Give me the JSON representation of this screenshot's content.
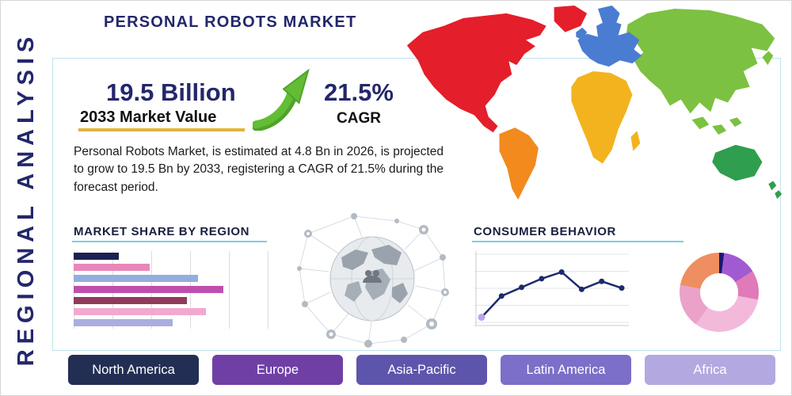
{
  "page": {
    "title": "PERSONAL ROBOTS MARKET",
    "side_label": "REGIONAL ANALYSIS"
  },
  "stats": {
    "market_value": "19.5 Billion",
    "market_value_label": "2033 Market Value",
    "cagr_value": "21.5%",
    "cagr_label": "CAGR",
    "description": "Personal Robots Market, is estimated at 4.8 Bn in 2026, is projected to grow to 19.5 Bn by 2033, registering a CAGR of 21.5% during the forecast period."
  },
  "sections": {
    "market_share_title": "MARKET SHARE BY REGION",
    "consumer_behavior_title": "CONSUMER BEHAVIOR"
  },
  "regions": [
    {
      "label": "North America",
      "color": "#232e54"
    },
    {
      "label": "Europe",
      "color": "#6f3fa6"
    },
    {
      "label": "Asia-Pacific",
      "color": "#5d55ab"
    },
    {
      "label": "Latin America",
      "color": "#7b6fc9"
    },
    {
      "label": "Africa",
      "color": "#b3a8e0"
    }
  ],
  "colors": {
    "accent_navy": "#23276b",
    "underline_teal": "#79cfe3",
    "gold_underline": "#e2b33c",
    "arrow_green": "#62bd34"
  },
  "map_colors": {
    "north_america": "#e41e2b",
    "greenland": "#e41e2b",
    "south_america": "#f28a1e",
    "europe": "#4a7cd2",
    "africa": "#f2b31e",
    "asia": "#7cc141",
    "australia": "#2f9e4e"
  },
  "chart_data": [
    {
      "type": "bar",
      "title": "MARKET SHARE BY REGION",
      "orientation": "horizontal",
      "values": [
        23,
        39,
        64,
        77,
        58,
        68,
        51
      ],
      "colors": [
        "#1b2153",
        "#e887b9",
        "#93aede",
        "#bf4fae",
        "#903a5c",
        "#f2a9d0",
        "#a9aede"
      ],
      "xlim": [
        0,
        100
      ],
      "grid": true,
      "axis_labels_visible": false
    },
    {
      "type": "line",
      "title": "CONSUMER BEHAVIOR",
      "x": [
        1,
        2,
        3,
        4,
        5,
        6,
        7,
        8
      ],
      "values": [
        10,
        42,
        55,
        68,
        78,
        52,
        64,
        54
      ],
      "ylim": [
        0,
        100
      ],
      "color": "#1c2b6e",
      "marker_color": "#1c2b6e",
      "first_marker_color": "#b9a7e6",
      "grid": true,
      "axis_labels_visible": false
    },
    {
      "type": "pie",
      "title": "Regional distribution donut",
      "donut": true,
      "values": [
        2,
        14,
        12,
        32,
        18,
        22
      ],
      "colors": [
        "#191970",
        "#a25ad2",
        "#e07ab8",
        "#f3b9da",
        "#eaa2c8",
        "#ef8e60"
      ]
    }
  ]
}
